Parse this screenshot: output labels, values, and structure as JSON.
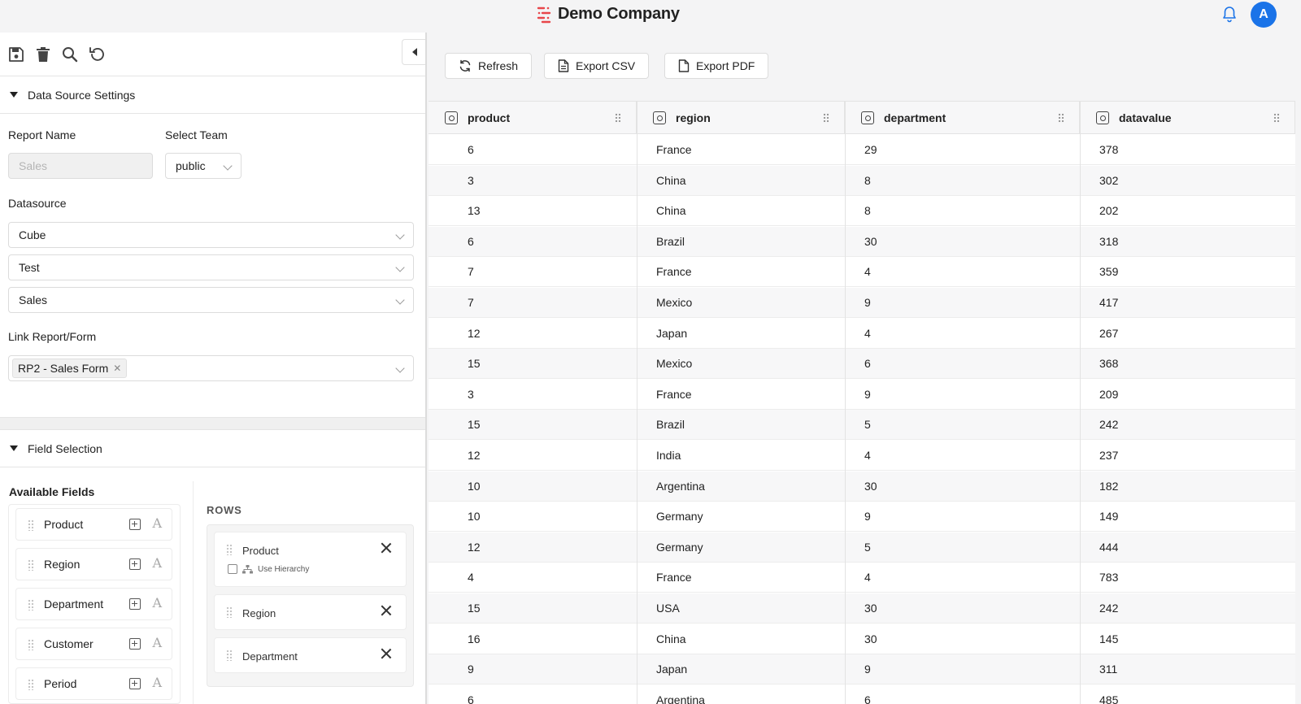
{
  "header": {
    "company": "Demo Company",
    "avatar_initial": "A",
    "brand_color": "#e8464a",
    "accent_color": "#1a73e8"
  },
  "toolbar": {
    "icons": [
      "save-icon",
      "trash-icon",
      "search-icon",
      "undo-icon"
    ],
    "collapse_icon": "caret-left-icon"
  },
  "data_source": {
    "section_title": "Data Source Settings",
    "report_name_label": "Report Name",
    "report_name_placeholder": "Sales",
    "select_team_label": "Select Team",
    "select_team_value": "public",
    "datasource_label": "Datasource",
    "datasource_values": [
      "Cube",
      "Test",
      "Sales"
    ],
    "link_label": "Link Report/Form",
    "link_tag": "RP2 - Sales Form"
  },
  "field_selection": {
    "section_title": "Field Selection",
    "available_title": "Available Fields",
    "available_fields": [
      "Product",
      "Region",
      "Department",
      "Customer",
      "Period"
    ],
    "rows_title": "ROWS",
    "use_hierarchy_label": "Use Hierarchy",
    "row_fields": [
      "Product",
      "Region",
      "Department"
    ]
  },
  "actions": {
    "refresh": "Refresh",
    "export_csv": "Export CSV",
    "export_pdf": "Export PDF"
  },
  "table": {
    "columns": [
      "product",
      "region",
      "department",
      "datavalue"
    ],
    "rows": [
      [
        "6",
        "France",
        "29",
        "378"
      ],
      [
        "3",
        "China",
        "8",
        "302"
      ],
      [
        "13",
        "China",
        "8",
        "202"
      ],
      [
        "6",
        "Brazil",
        "30",
        "318"
      ],
      [
        "7",
        "France",
        "4",
        "359"
      ],
      [
        "7",
        "Mexico",
        "9",
        "417"
      ],
      [
        "12",
        "Japan",
        "4",
        "267"
      ],
      [
        "15",
        "Mexico",
        "6",
        "368"
      ],
      [
        "3",
        "France",
        "9",
        "209"
      ],
      [
        "15",
        "Brazil",
        "5",
        "242"
      ],
      [
        "12",
        "India",
        "4",
        "237"
      ],
      [
        "10",
        "Argentina",
        "30",
        "182"
      ],
      [
        "10",
        "Germany",
        "9",
        "149"
      ],
      [
        "12",
        "Germany",
        "5",
        "444"
      ],
      [
        "4",
        "France",
        "4",
        "783"
      ],
      [
        "15",
        "USA",
        "30",
        "242"
      ],
      [
        "16",
        "China",
        "30",
        "145"
      ],
      [
        "9",
        "Japan",
        "9",
        "311"
      ],
      [
        "6",
        "Argentina",
        "6",
        "485"
      ]
    ]
  }
}
